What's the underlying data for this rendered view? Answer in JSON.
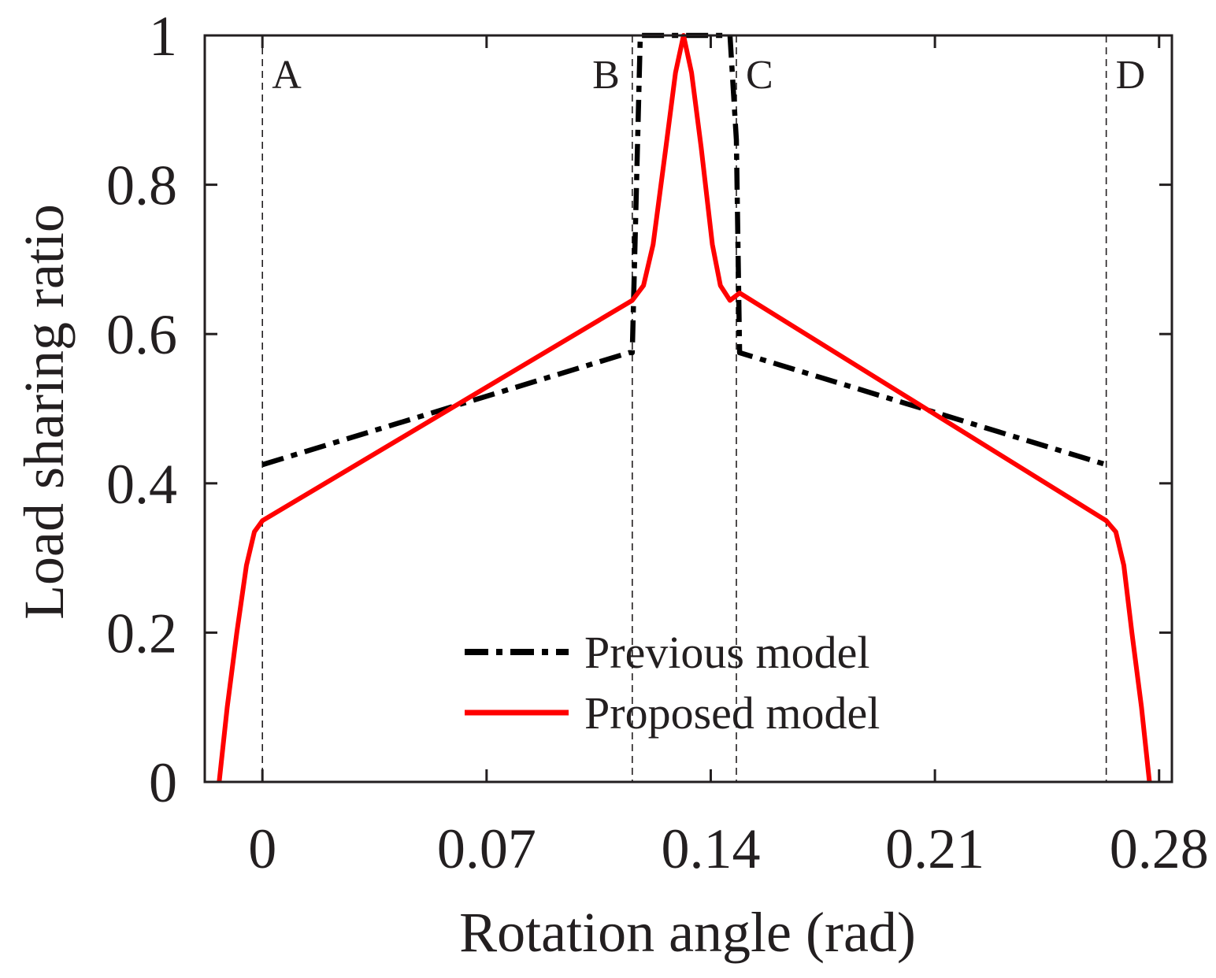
{
  "chart_data": {
    "type": "line",
    "title": "",
    "xlabel": "Rotation angle (rad)",
    "ylabel": "Load sharing ratio",
    "xlim": [
      -0.018,
      0.284
    ],
    "ylim": [
      0,
      1
    ],
    "xticks": [
      0,
      0.07,
      0.14,
      0.21,
      0.28
    ],
    "xtick_labels": [
      "0",
      "0.07",
      "0.14",
      "0.21",
      "0.28"
    ],
    "yticks": [
      0,
      0.2,
      0.4,
      0.6,
      0.8,
      1
    ],
    "ytick_labels": [
      "0",
      "0.2",
      "0.4",
      "0.6",
      "0.8",
      "1"
    ],
    "grid": false,
    "legend_position": "bottom-center",
    "regions": [
      {
        "label": "A",
        "x": 0
      },
      {
        "label": "B",
        "x": 0.1155
      },
      {
        "label": "C",
        "x": 0.148
      },
      {
        "label": "D",
        "x": 0.2635
      }
    ],
    "series": [
      {
        "name": "Previous model",
        "color": "#000000",
        "style": "dash-dot",
        "x": [
          0,
          0.1145,
          0.1155,
          0.118,
          0.146,
          0.148,
          0.149,
          0.2635
        ],
        "y": [
          0.425,
          0.575,
          0.575,
          1.0,
          1.0,
          0.86,
          0.575,
          0.425
        ]
      },
      {
        "name": "Proposed model",
        "color": "#ff0000",
        "style": "solid",
        "x": [
          -0.0135,
          -0.011,
          -0.008,
          -0.005,
          -0.0025,
          0,
          0.1155,
          0.119,
          0.122,
          0.126,
          0.129,
          0.1315,
          0.134,
          0.137,
          0.1405,
          0.143,
          0.146,
          0.149,
          0.2635,
          0.2665,
          0.269,
          0.2715,
          0.2745,
          0.277
        ],
        "y": [
          0,
          0.1,
          0.2,
          0.29,
          0.335,
          0.35,
          0.645,
          0.665,
          0.72,
          0.85,
          0.95,
          1.0,
          0.95,
          0.85,
          0.72,
          0.665,
          0.645,
          0.655,
          0.35,
          0.335,
          0.29,
          0.2,
          0.1,
          0
        ]
      }
    ]
  }
}
